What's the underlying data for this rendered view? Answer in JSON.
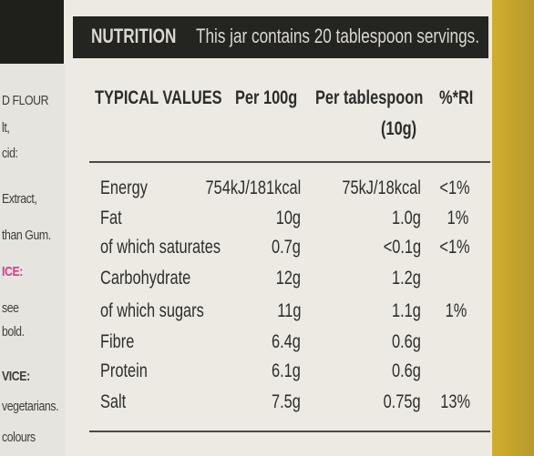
{
  "left_fragments": [
    {
      "text": "D FLOUR",
      "style": ""
    },
    {
      "text": "lt,",
      "style": ""
    },
    {
      "text": "cid:",
      "style": ""
    },
    {
      "text": "Extract,",
      "style": ""
    },
    {
      "text": "than Gum.",
      "style": ""
    },
    {
      "text": "ICE:",
      "style": "pink"
    },
    {
      "text": "see",
      "style": ""
    },
    {
      "text": "bold.",
      "style": ""
    },
    {
      "text": "VICE:",
      "style": "bold"
    },
    {
      "text": "vegetarians.",
      "style": ""
    },
    {
      "text": "colours",
      "style": ""
    }
  ],
  "header": {
    "title": "NUTRITION",
    "subtitle": "This jar contains 20 tablespoon servings."
  },
  "columns": {
    "typical": "TYPICAL VALUES",
    "per100": "Per 100g",
    "pertbsp": "Per tablespoon",
    "pertbsp2": "(10g)",
    "ri": "%*RI"
  },
  "rows": [
    {
      "label": "Energy",
      "per100": "754kJ/181kcal",
      "pertbsp": "75kJ/18kcal",
      "ri": "<1%"
    },
    {
      "label": "Fat",
      "per100": "10g",
      "pertbsp": "1.0g",
      "ri": "1%"
    },
    {
      "label": "of which saturates",
      "per100": "0.7g",
      "pertbsp": "<0.1g",
      "ri": "<1%"
    },
    {
      "label": "Carbohydrate",
      "per100": "12g",
      "pertbsp": "1.2g",
      "ri": ""
    },
    {
      "label": "of which sugars",
      "per100": "11g",
      "pertbsp": "1.1g",
      "ri": "1%"
    },
    {
      "label": "Fibre",
      "per100": "6.4g",
      "pertbsp": "0.6g",
      "ri": ""
    },
    {
      "label": "Protein",
      "per100": "6.1g",
      "pertbsp": "0.6g",
      "ri": ""
    },
    {
      "label": "Salt",
      "per100": "7.5g",
      "pertbsp": "0.75g",
      "ri": "13%"
    }
  ]
}
